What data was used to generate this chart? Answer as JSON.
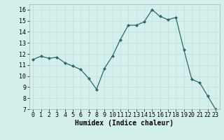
{
  "x": [
    0,
    1,
    2,
    3,
    4,
    5,
    6,
    7,
    8,
    9,
    10,
    11,
    12,
    13,
    14,
    15,
    16,
    17,
    18,
    19,
    20,
    21,
    22,
    23
  ],
  "y": [
    11.5,
    11.8,
    11.6,
    11.7,
    11.2,
    10.9,
    10.6,
    9.8,
    8.8,
    10.7,
    11.8,
    13.3,
    14.6,
    14.6,
    14.9,
    16.0,
    15.4,
    15.1,
    15.3,
    12.4,
    9.7,
    9.4,
    8.2,
    7.0
  ],
  "xlabel": "Humidex (Indice chaleur)",
  "ylim": [
    7,
    16.5
  ],
  "yticks": [
    7,
    8,
    9,
    10,
    11,
    12,
    13,
    14,
    15,
    16
  ],
  "xticks": [
    0,
    1,
    2,
    3,
    4,
    5,
    6,
    7,
    8,
    9,
    10,
    11,
    12,
    13,
    14,
    15,
    16,
    17,
    18,
    19,
    20,
    21,
    22,
    23
  ],
  "line_color": "#2e6b5e",
  "marker": "D",
  "marker_size": 2,
  "bg_color": "#d4f0ec",
  "grid_color": "#c0ddd8",
  "xlabel_fontsize": 7,
  "tick_fontsize": 6,
  "linewidth": 0.9
}
